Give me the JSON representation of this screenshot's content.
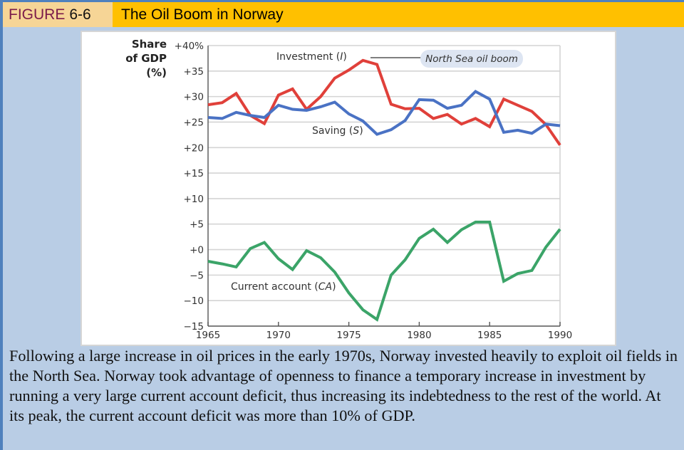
{
  "header": {
    "figure_word": "FIGURE",
    "figure_number": "6-6",
    "title": "The Oil Boom in Norway"
  },
  "caption": "Following a large increase in oil prices in the early 1970s, Norway invested heavily to exploit oil fields in the North Sea. Norway took advantage of openness to finance a temporary increase in investment by running a very large current account deficit, thus increasing its indebtedness to the rest of the world. At its peak, the current account deficit was more than 10% of GDP.",
  "chart_data": {
    "type": "line",
    "title": "The Oil Boom in Norway",
    "ylabel_lines": [
      "Share",
      "of GDP",
      "(%)"
    ],
    "xlabel": "",
    "xlim": [
      1965,
      1990
    ],
    "ylim": [
      -15,
      40
    ],
    "grid": true,
    "x_ticks": [
      1965,
      1970,
      1975,
      1980,
      1985,
      1990
    ],
    "x_tick_labels": [
      "1965",
      "1970",
      "1975",
      "1980",
      "1985",
      "1990"
    ],
    "y_ticks": [
      40,
      35,
      30,
      25,
      20,
      15,
      10,
      5,
      0,
      -5,
      -10,
      -15
    ],
    "y_tick_labels": [
      "+40%",
      "+35",
      "+30",
      "+25",
      "+20",
      "+15",
      "+10",
      "+5",
      "+0",
      "−5",
      "−10",
      "−15"
    ],
    "x": [
      1965,
      1966,
      1967,
      1968,
      1969,
      1970,
      1971,
      1972,
      1973,
      1974,
      1975,
      1976,
      1977,
      1978,
      1979,
      1980,
      1981,
      1982,
      1983,
      1984,
      1985,
      1986,
      1987,
      1988,
      1989,
      1990
    ],
    "series": [
      {
        "name": "Investment (I)",
        "label_main": "Investment (",
        "label_var": "I",
        "label_end": ")",
        "color": "#E0403A",
        "values": [
          28.4,
          28.8,
          30.6,
          26.3,
          24.7,
          30.3,
          31.5,
          27.5,
          30.0,
          33.6,
          35.2,
          37.1,
          36.3,
          28.5,
          27.6,
          27.7,
          25.7,
          26.5,
          24.6,
          25.7,
          24.1,
          29.5,
          28.3,
          27.1,
          24.5,
          20.5
        ]
      },
      {
        "name": "Saving (S)",
        "label_main": "Saving (",
        "label_var": "S",
        "label_end": ")",
        "color": "#4A72C4",
        "values": [
          25.9,
          25.7,
          26.9,
          26.3,
          25.9,
          28.3,
          27.5,
          27.3,
          28.0,
          28.9,
          26.6,
          25.2,
          22.6,
          23.5,
          25.3,
          29.4,
          29.3,
          27.7,
          28.3,
          31.0,
          29.5,
          23.0,
          23.4,
          22.8,
          24.6,
          24.3
        ]
      },
      {
        "name": "Current account (CA)",
        "label_main": "Current account (",
        "label_var": "CA",
        "label_end": ")",
        "color": "#3BA468",
        "values": [
          -2.3,
          -2.8,
          -3.4,
          0.2,
          1.4,
          -1.8,
          -3.9,
          -0.2,
          -1.6,
          -4.4,
          -8.5,
          -11.8,
          -13.7,
          -5.0,
          -2.0,
          2.2,
          4.0,
          1.4,
          3.9,
          5.4,
          5.4,
          -6.2,
          -4.7,
          -4.1,
          0.5,
          4.0
        ]
      }
    ],
    "annotations": [
      {
        "text": "North Sea oil boom",
        "points_to": "Investment peak, 1976"
      }
    ]
  }
}
